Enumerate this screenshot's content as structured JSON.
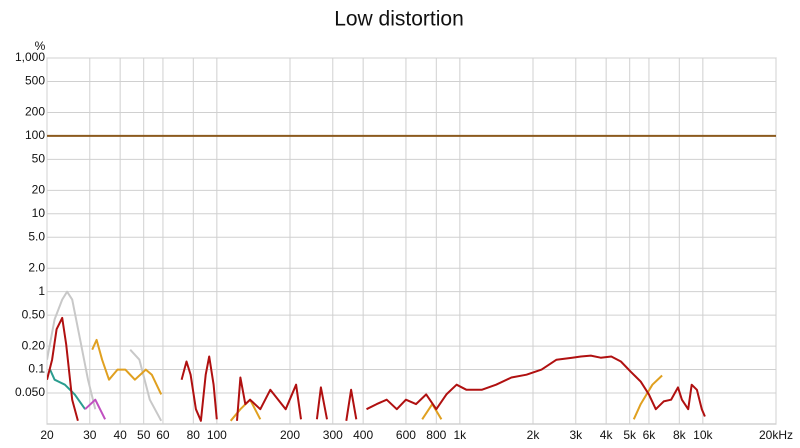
{
  "chart_data": {
    "type": "line",
    "title": "Low distortion",
    "ylabel": "%",
    "xscale": "log",
    "yscale": "log",
    "grid": true,
    "xlim": [
      20,
      20000
    ],
    "ylim": [
      0.02,
      1000
    ],
    "xticks": [
      20,
      30,
      40,
      50,
      60,
      80,
      100,
      200,
      300,
      400,
      600,
      800,
      {
        "value": 1000,
        "label": "1k"
      },
      {
        "value": 2000,
        "label": "2k"
      },
      {
        "value": 3000,
        "label": "3k"
      },
      {
        "value": 4000,
        "label": "4k"
      },
      {
        "value": 5000,
        "label": "5k"
      },
      {
        "value": 6000,
        "label": "6k"
      },
      {
        "value": 8000,
        "label": "8k"
      },
      {
        "value": 10000,
        "label": "10k"
      },
      {
        "value": 20000,
        "label": "20kHz"
      }
    ],
    "yticks": [
      {
        "value": 1000,
        "label": "1,000"
      },
      500,
      200,
      100,
      50,
      20,
      10,
      {
        "value": 5,
        "label": "5.0"
      },
      {
        "value": 2,
        "label": "2.0"
      },
      1,
      {
        "value": 0.5,
        "label": "0.50"
      },
      {
        "value": 0.2,
        "label": "0.20"
      },
      0.1,
      {
        "value": 0.05,
        "label": "0.050"
      }
    ],
    "series": [
      {
        "color": "#8b5a1e",
        "x": [
          20,
          20000
        ],
        "values": [
          100,
          100
        ]
      },
      {
        "color": "#c8c8c8",
        "x": [
          20,
          21.5,
          23.1,
          24.2,
          25.4,
          27.4,
          29.5,
          31.6,
          null,
          44,
          48,
          53,
          59
        ],
        "values": [
          0.134,
          0.44,
          0.79,
          1.0,
          0.79,
          0.24,
          0.074,
          0.031,
          null,
          0.18,
          0.134,
          0.041,
          0.022
        ]
      },
      {
        "color": "#2a9d8f",
        "x": [
          20.6,
          21.5,
          23.7,
          26,
          28.7
        ],
        "values": [
          0.1,
          0.074,
          0.064,
          0.048,
          0.031
        ]
      },
      {
        "color": "#c04fc0",
        "x": [
          28.7,
          31.6,
          34.7
        ],
        "values": [
          0.031,
          0.041,
          0.023
        ]
      },
      {
        "color": "#e0a020",
        "x": [
          30.7,
          32,
          33.7,
          36,
          39,
          42,
          46,
          51,
          54,
          59,
          null,
          114,
          125,
          137,
          151,
          null,
          700,
          770,
          840,
          null,
          5200,
          5550,
          6200,
          6800
        ],
        "values": [
          0.18,
          0.24,
          0.134,
          0.074,
          0.1,
          0.1,
          0.074,
          0.1,
          0.086,
          0.048,
          null,
          0.022,
          0.031,
          0.041,
          0.023,
          null,
          0.023,
          0.036,
          0.023,
          null,
          0.023,
          0.036,
          0.064,
          0.084
        ]
      },
      {
        "color": "#b01010",
        "x": [
          20,
          21,
          21.9,
          23.1,
          24,
          25.4,
          26.8,
          null,
          71.6,
          75,
          78,
          82,
          86,
          90,
          93,
          97,
          100,
          null,
          121,
          125,
          131,
          137,
          151,
          166,
          192,
          212,
          222,
          null,
          258,
          268,
          284,
          null,
          341,
          357,
          375,
          null,
          413,
          455,
          500,
          550,
          600,
          660,
          727,
          800,
          880,
          970,
          1065,
          1230,
          1410,
          1630,
          1880,
          2170,
          2500,
          2900,
          3150,
          3460,
          3800,
          4200,
          4600,
          5050,
          5550,
          6000,
          6400,
          6900,
          7400,
          7900,
          8200,
          8700,
          9000,
          9450,
          9900,
          10200
        ],
        "values": [
          0.074,
          0.134,
          0.33,
          0.46,
          0.21,
          0.041,
          0.022,
          null,
          0.074,
          0.127,
          0.086,
          0.031,
          0.022,
          0.086,
          0.147,
          0.064,
          0.023,
          null,
          0.022,
          0.079,
          0.036,
          0.041,
          0.031,
          0.055,
          0.031,
          0.064,
          0.023,
          null,
          0.023,
          0.059,
          0.023,
          null,
          0.022,
          0.055,
          0.023,
          null,
          0.031,
          0.036,
          0.041,
          0.031,
          0.041,
          0.036,
          0.048,
          0.031,
          0.048,
          0.064,
          0.055,
          0.055,
          0.064,
          0.079,
          0.086,
          0.1,
          0.134,
          0.142,
          0.147,
          0.151,
          0.142,
          0.147,
          0.127,
          0.094,
          0.07,
          0.048,
          0.031,
          0.039,
          0.041,
          0.059,
          0.041,
          0.031,
          0.064,
          0.055,
          0.031,
          0.025
        ]
      }
    ]
  }
}
